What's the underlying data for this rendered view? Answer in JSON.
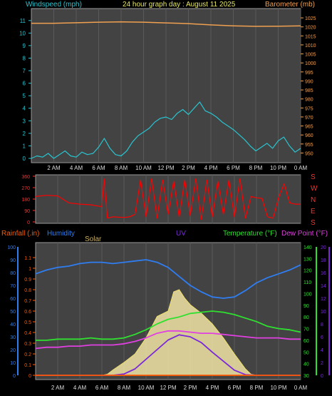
{
  "header": {
    "wind_label": "Windspeed (mph)",
    "title": "24 hour graph day : August 11 2025",
    "baro_label": "Barometer (mb)"
  },
  "colors": {
    "wind": "#29c4cf",
    "baro": "#f0a050",
    "dir": "#ff0000",
    "humidity": "#2f7df0",
    "temperature": "#30e030",
    "dewpoint": "#e040e0",
    "uv": "#7a28d8",
    "solar_fill": "#e8dca0",
    "solar_line": "#f0e070",
    "solar_max": "#cfcfcf",
    "rain": "#ff5a00"
  },
  "bottom_header": {
    "rain": "Rainfall (.in)",
    "humidity": "Humidity",
    "solar": "Solar",
    "uv": "UV",
    "temperature": "Temperature (°F)",
    "dewpoint": "Dew Point (°F)"
  },
  "time_labels": [
    "2 AM",
    "4 AM",
    "6 AM",
    "8 AM",
    "10 AM",
    "12 PM",
    "2 PM",
    "4 PM",
    "6 PM",
    "8 PM",
    "10 PM",
    "0 AM"
  ],
  "direction_labels": [
    "S",
    "E",
    "N",
    "W",
    "S"
  ],
  "chart_data": [
    {
      "type": "line",
      "title": "24 hour graph day : August 11 2025",
      "x_unit": "hours",
      "xlim": [
        0,
        24
      ],
      "y_left": {
        "label": "Windspeed (mph)",
        "ylim": [
          0,
          11.5
        ],
        "ticks": [
          0,
          1,
          2,
          3,
          4,
          5,
          6,
          7,
          8,
          9,
          10,
          11
        ]
      },
      "y_right": {
        "label": "Barometer (mb)",
        "ylim": [
          947,
          1027
        ],
        "ticks": [
          950,
          955,
          960,
          965,
          970,
          975,
          980,
          985,
          990,
          995,
          1000,
          1005,
          1010,
          1015,
          1020,
          1025
        ]
      },
      "series": [
        {
          "name": "Windspeed (mph)",
          "axis": "left",
          "x": [
            0,
            0.5,
            1,
            1.5,
            2,
            2.5,
            3,
            3.5,
            4,
            4.5,
            5,
            5.5,
            6,
            6.5,
            7,
            7.5,
            8,
            8.5,
            9,
            9.5,
            10,
            10.5,
            11,
            11.5,
            12,
            12.5,
            13,
            13.5,
            14,
            14.5,
            15,
            15.5,
            16,
            16.5,
            17,
            17.5,
            18,
            18.5,
            19,
            19.5,
            20,
            20.5,
            21,
            21.5,
            22,
            22.5,
            23,
            23.5,
            24
          ],
          "values": [
            0,
            0.2,
            0.1,
            0.4,
            0,
            0.3,
            0.6,
            0.2,
            0.1,
            0.5,
            0.3,
            0.4,
            0.9,
            1.6,
            0.8,
            0.3,
            0.2,
            0.6,
            1.3,
            1.8,
            2.1,
            2.4,
            2.9,
            3.2,
            3.3,
            3.1,
            3.6,
            3.9,
            3.5,
            4.0,
            4.5,
            3.8,
            3.6,
            3.3,
            2.9,
            2.6,
            2.3,
            1.9,
            1.5,
            1.0,
            0.6,
            0.9,
            1.2,
            0.8,
            1.4,
            1.7,
            1.0,
            0.5,
            0.8
          ]
        },
        {
          "name": "Barometer (mb)",
          "axis": "right",
          "x": [
            0,
            2,
            4,
            6,
            8,
            10,
            12,
            14,
            16,
            18,
            20,
            22,
            24
          ],
          "values": [
            1022,
            1022,
            1022.3,
            1022.6,
            1022.8,
            1022.6,
            1022.2,
            1021.8,
            1021.1,
            1020.6,
            1020.3,
            1020.4,
            1020.6
          ]
        }
      ]
    },
    {
      "type": "line",
      "x_unit": "hours",
      "xlim": [
        0,
        24
      ],
      "y_left": {
        "ylim": [
          0,
          360
        ],
        "ticks": [
          0,
          90,
          180,
          270,
          360
        ]
      },
      "y_right_labels": [
        "S",
        "E",
        "N",
        "W",
        "S"
      ],
      "series": [
        {
          "name": "Wind direction",
          "x": [
            0,
            1,
            2,
            3,
            4,
            5,
            6,
            6.2,
            6.5,
            7,
            8,
            8.5,
            9,
            9.5,
            10,
            10.5,
            11,
            11.5,
            12,
            12.5,
            13,
            13.5,
            14,
            14.5,
            15,
            15.5,
            16,
            16.5,
            17,
            17.5,
            18,
            18.5,
            19,
            19.5,
            20,
            20.5,
            21,
            21.5,
            22,
            22.5,
            23,
            23.5,
            24
          ],
          "values": [
            200,
            210,
            205,
            150,
            140,
            135,
            120,
            340,
            30,
            40,
            35,
            40,
            60,
            330,
            40,
            340,
            30,
            330,
            60,
            320,
            40,
            330,
            50,
            340,
            20,
            330,
            40,
            320,
            60,
            330,
            40,
            340,
            30,
            200,
            190,
            185,
            40,
            30,
            190,
            300,
            150,
            140,
            140
          ]
        }
      ]
    },
    {
      "type": "line",
      "x_unit": "hours",
      "xlim": [
        0,
        24
      ],
      "y_rain": {
        "label": "Rainfall (.in)",
        "ylim": [
          0,
          1.2
        ],
        "ticks": [
          0,
          0.1,
          0.2,
          0.3,
          0.4,
          0.5,
          0.6,
          0.7,
          0.8,
          0.9,
          1,
          1.1
        ]
      },
      "y_humidity": {
        "label": "Humidity",
        "ylim": [
          0,
          100
        ],
        "ticks": [
          0,
          10,
          20,
          30,
          40,
          50,
          60,
          70,
          80,
          90,
          100
        ]
      },
      "y_temp": {
        "label": "Temperature (°F)",
        "ylim": [
          30,
          140
        ],
        "ticks": [
          30,
          40,
          50,
          60,
          70,
          80,
          90,
          100,
          110,
          120,
          130,
          140
        ]
      },
      "y_uv": {
        "label": "UV",
        "ylim": [
          0,
          20
        ],
        "ticks": [
          0,
          2,
          4,
          6,
          8,
          10,
          12,
          14,
          16,
          18,
          20
        ]
      },
      "series": [
        {
          "name": "Humidity",
          "axis": "humidity",
          "x": [
            0,
            1,
            2,
            3,
            4,
            5,
            6,
            7,
            8,
            9,
            10,
            11,
            12,
            13,
            14,
            15,
            16,
            17,
            18,
            19,
            20,
            21,
            22,
            23,
            24
          ],
          "values": [
            79,
            82,
            84,
            85,
            87,
            88,
            88,
            87,
            88,
            89,
            90,
            88,
            84,
            77,
            70,
            65,
            61,
            60,
            61,
            66,
            72,
            76,
            79,
            82,
            86
          ]
        },
        {
          "name": "Temperature (°F)",
          "axis": "temp",
          "x": [
            0,
            1,
            2,
            3,
            4,
            5,
            6,
            7,
            8,
            9,
            10,
            11,
            12,
            13,
            14,
            15,
            16,
            17,
            18,
            19,
            20,
            21,
            22,
            23,
            24
          ],
          "values": [
            60,
            60,
            61,
            61,
            61,
            62,
            61,
            61,
            62,
            65,
            69,
            74,
            78,
            80,
            83,
            84,
            85,
            84,
            82,
            79,
            76,
            72,
            70,
            69,
            67
          ]
        },
        {
          "name": "Dew Point (°F)",
          "axis": "temp",
          "x": [
            0,
            1,
            2,
            3,
            4,
            5,
            6,
            7,
            8,
            9,
            10,
            11,
            12,
            13,
            14,
            15,
            16,
            17,
            18,
            19,
            20,
            21,
            22,
            23,
            24
          ],
          "values": [
            53,
            54,
            54,
            55,
            55,
            56,
            56,
            56,
            57,
            59,
            62,
            66,
            68,
            68,
            67,
            66,
            66,
            65,
            64,
            63,
            62,
            62,
            62,
            61,
            61
          ]
        },
        {
          "name": "UV",
          "axis": "uv",
          "x": [
            0,
            6,
            7,
            8,
            9,
            10,
            11,
            12,
            13,
            14,
            15,
            16,
            17,
            18,
            19,
            20,
            24
          ],
          "values": [
            0,
            0,
            0,
            0.2,
            1,
            2.5,
            4,
            5.5,
            6.3,
            6,
            5.1,
            3.6,
            2.2,
            0.8,
            0.1,
            0,
            0
          ]
        },
        {
          "name": "Solar",
          "axis": "rain",
          "x": [
            0,
            6,
            6.5,
            7,
            8,
            9,
            10,
            11,
            12,
            12.5,
            13,
            13.5,
            14,
            15,
            16,
            17,
            18,
            19,
            19.5,
            20,
            24
          ],
          "values": [
            0,
            0,
            0.01,
            0.05,
            0.12,
            0.2,
            0.35,
            0.55,
            0.6,
            0.78,
            0.8,
            0.72,
            0.66,
            0.58,
            0.48,
            0.35,
            0.2,
            0.06,
            0.01,
            0,
            0
          ]
        },
        {
          "name": "Rainfall (.in)",
          "axis": "rain",
          "x": [
            0,
            24
          ],
          "values": [
            0,
            0
          ]
        }
      ]
    }
  ]
}
